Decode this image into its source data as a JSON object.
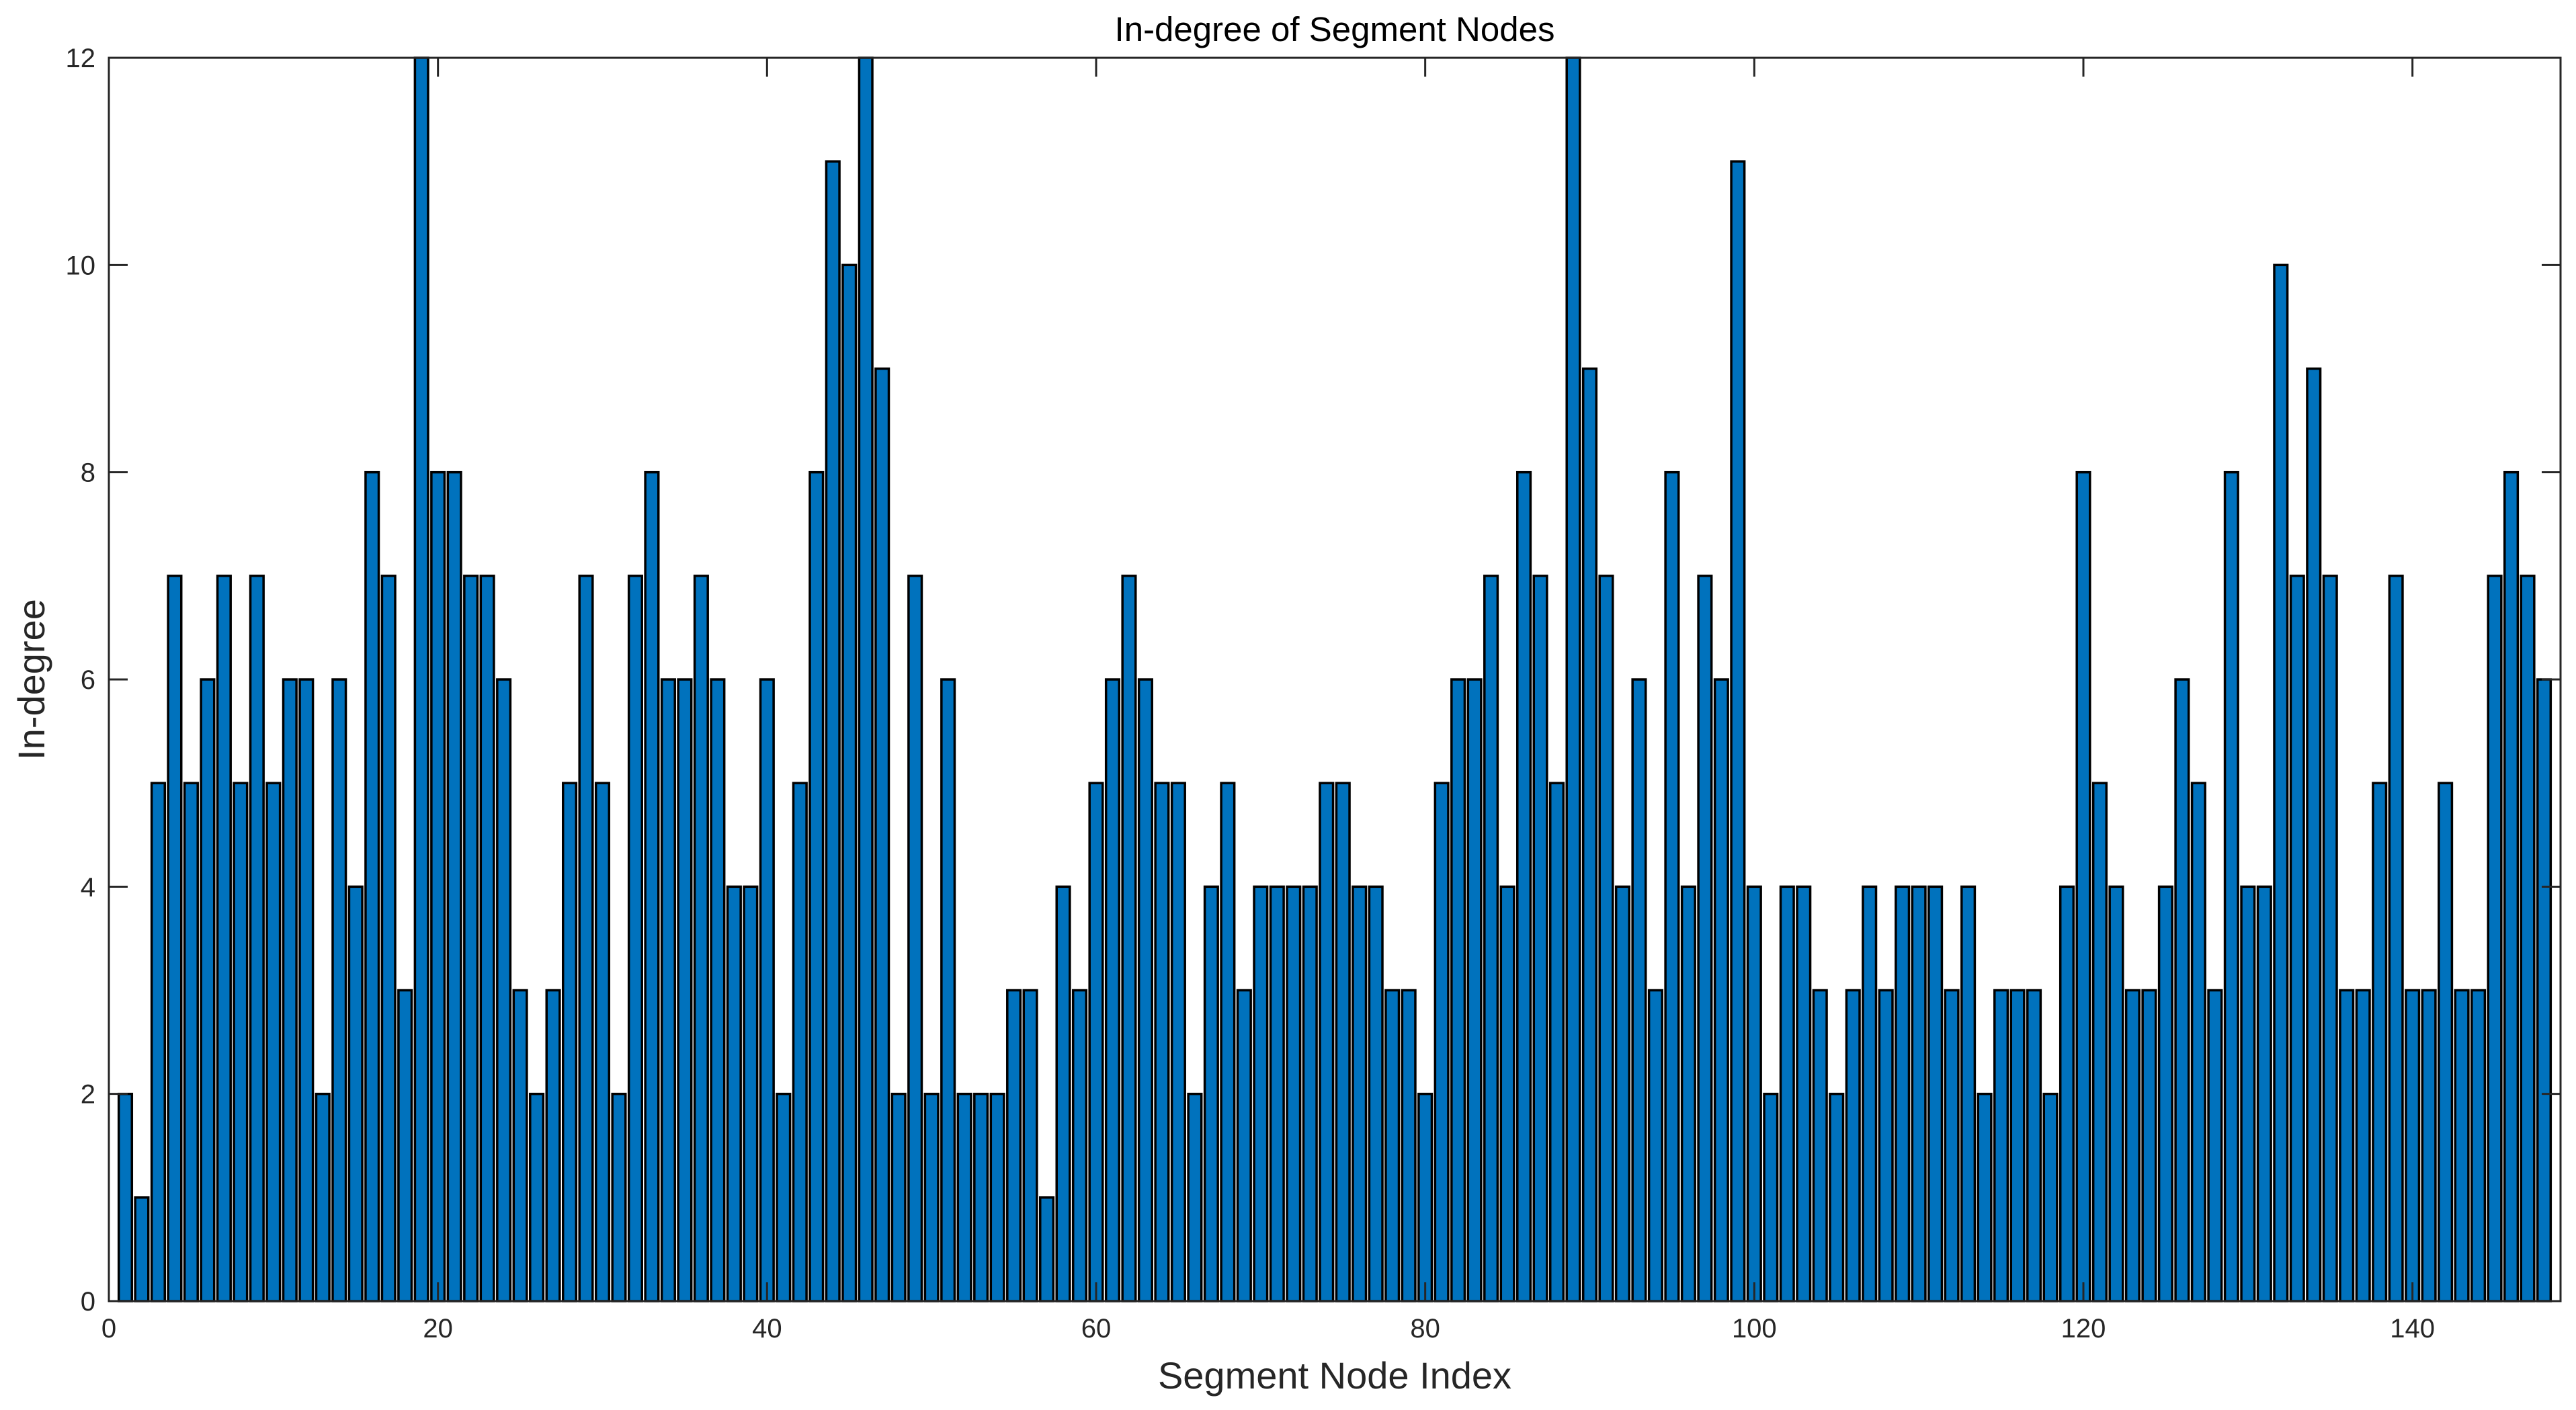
{
  "chart_data": {
    "type": "bar",
    "title": "In-degree of Segment Nodes",
    "xlabel": "Segment Node Index",
    "ylabel": "In-degree",
    "xlim": [
      0,
      149
    ],
    "ylim": [
      0,
      12
    ],
    "xticks": [
      0,
      20,
      40,
      60,
      80,
      100,
      120,
      140
    ],
    "yticks": [
      0,
      2,
      4,
      6,
      8,
      10,
      12
    ],
    "grid": false,
    "bar_color": "#0072BD",
    "edge_color": "#000000",
    "x": [
      1,
      2,
      3,
      4,
      5,
      6,
      7,
      8,
      9,
      10,
      11,
      12,
      13,
      14,
      15,
      16,
      17,
      18,
      19,
      20,
      21,
      22,
      23,
      24,
      25,
      26,
      27,
      28,
      29,
      30,
      31,
      32,
      33,
      34,
      35,
      36,
      37,
      38,
      39,
      40,
      41,
      42,
      43,
      44,
      45,
      46,
      47,
      48,
      49,
      50,
      51,
      52,
      53,
      54,
      55,
      56,
      57,
      58,
      59,
      60,
      61,
      62,
      63,
      64,
      65,
      66,
      67,
      68,
      69,
      70,
      71,
      72,
      73,
      74,
      75,
      76,
      77,
      78,
      79,
      80,
      81,
      82,
      83,
      84,
      85,
      86,
      87,
      88,
      89,
      90,
      91,
      92,
      93,
      94,
      95,
      96,
      97,
      98,
      99,
      100,
      101,
      102,
      103,
      104,
      105,
      106,
      107,
      108,
      109,
      110,
      111,
      112,
      113,
      114,
      115,
      116,
      117,
      118,
      119,
      120,
      121,
      122,
      123,
      124,
      125,
      126,
      127,
      128,
      129,
      130,
      131,
      132,
      133,
      134,
      135,
      136,
      137,
      138,
      139,
      140,
      141,
      142,
      143,
      144,
      145,
      146,
      147,
      148
    ],
    "values": [
      2,
      1,
      5,
      7,
      5,
      6,
      7,
      5,
      7,
      5,
      6,
      6,
      2,
      6,
      4,
      8,
      7,
      3,
      12,
      8,
      8,
      7,
      7,
      6,
      3,
      2,
      3,
      5,
      7,
      5,
      2,
      7,
      8,
      6,
      6,
      7,
      6,
      4,
      4,
      6,
      2,
      5,
      8,
      11,
      10,
      12,
      9,
      2,
      7,
      2,
      6,
      2,
      2,
      2,
      3,
      3,
      1,
      4,
      3,
      5,
      6,
      7,
      6,
      5,
      5,
      2,
      4,
      5,
      3,
      4,
      4,
      4,
      4,
      5,
      5,
      4,
      4,
      3,
      3,
      2,
      5,
      6,
      6,
      7,
      4,
      8,
      7,
      5,
      12,
      9,
      7,
      4,
      6,
      3,
      8,
      4,
      7,
      6,
      11,
      4,
      2,
      4,
      4,
      3,
      2,
      3,
      4,
      3,
      4,
      4,
      4,
      3,
      4,
      2,
      3,
      3,
      3,
      2,
      4,
      8,
      5,
      4,
      3,
      3,
      4,
      6,
      5,
      3,
      8,
      4,
      4,
      10,
      7,
      9,
      7,
      3,
      3,
      5,
      7,
      3,
      3,
      5,
      3,
      3,
      7,
      8,
      7,
      6
    ]
  }
}
